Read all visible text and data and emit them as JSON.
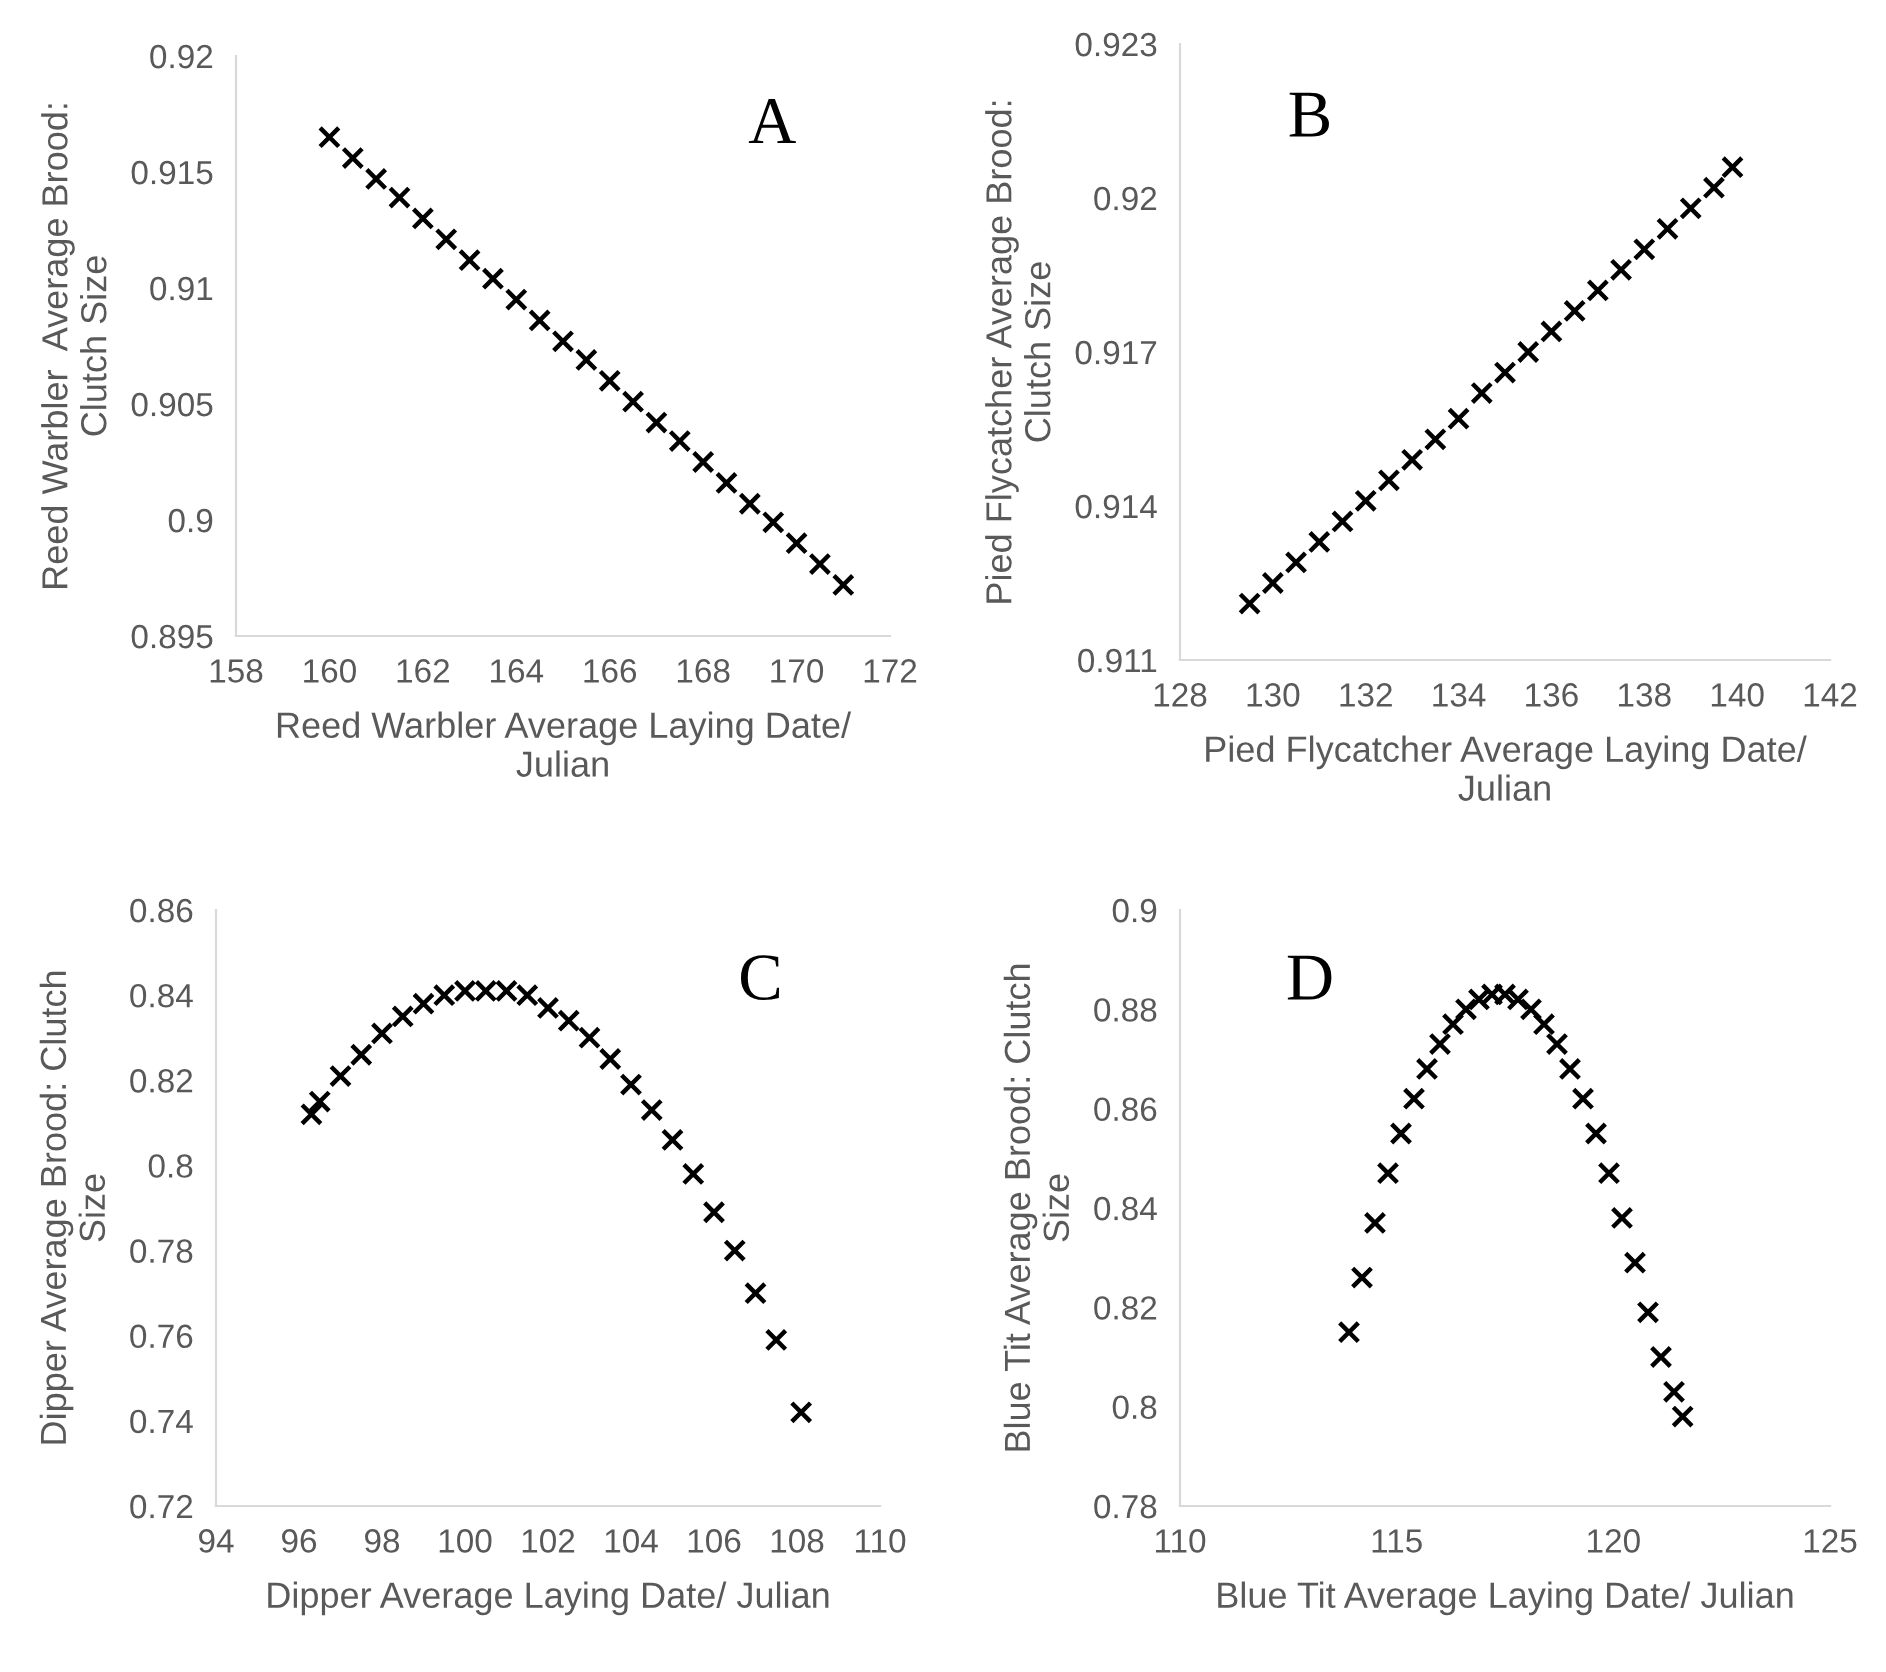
{
  "chart_data": [
    {
      "type": "scatter",
      "annotations": [
        "A"
      ],
      "xlabel": "Reed Warbler Average Laying Date/\nJulian",
      "ylabel": "Reed Warbler  Average Brood:\nClutch Size",
      "marker": "cross",
      "grid": false,
      "xlim": [
        158,
        172
      ],
      "xticks": [
        158,
        160,
        162,
        164,
        166,
        168,
        170,
        172
      ],
      "ylim": [
        0.895,
        0.92
      ],
      "yticks": [
        0.895,
        0.9,
        0.905,
        0.91,
        0.915,
        0.92
      ],
      "x": [
        160,
        160.5,
        161,
        161.5,
        162,
        162.5,
        163,
        163.5,
        164,
        164.5,
        165,
        165.5,
        166,
        166.5,
        167,
        167.5,
        168,
        168.5,
        169,
        169.5,
        170,
        170.5,
        171
      ],
      "series": [
        {
          "color": "#000000",
          "values": [
            0.9165,
            0.9156,
            0.9147,
            0.9139,
            0.913,
            0.9121,
            0.9112,
            0.9104,
            0.9095,
            0.9086,
            0.9077,
            0.9069,
            0.906,
            0.9051,
            0.9042,
            0.9034,
            0.9025,
            0.9016,
            0.9007,
            0.8999,
            0.899,
            0.8981,
            0.8972
          ]
        }
      ]
    },
    {
      "type": "scatter",
      "annotations": [
        "B"
      ],
      "xlabel": "Pied Flycatcher Average Laying Date/\nJulian",
      "ylabel": "Pied Flycatcher Average Brood:\nClutch Size",
      "marker": "cross",
      "grid": false,
      "xlim": [
        128,
        142
      ],
      "xticks": [
        128,
        130,
        132,
        134,
        136,
        138,
        140,
        142
      ],
      "ylim": [
        0.911,
        0.923
      ],
      "yticks": [
        0.911,
        0.914,
        0.917,
        0.92,
        0.923
      ],
      "x": [
        129.5,
        130,
        130.5,
        131,
        131.5,
        132,
        132.5,
        133,
        133.5,
        134,
        134.5,
        135,
        135.5,
        136,
        136.5,
        137,
        137.5,
        138,
        138.5,
        139,
        139.5,
        139.9
      ],
      "series": [
        {
          "color": "#000000",
          "values": [
            0.9121,
            0.9125,
            0.9129,
            0.9133,
            0.9137,
            0.9141,
            0.9145,
            0.9149,
            0.9153,
            0.9157,
            0.9162,
            0.9166,
            0.917,
            0.9174,
            0.9178,
            0.9182,
            0.9186,
            0.919,
            0.9194,
            0.9198,
            0.9202,
            0.9206
          ]
        }
      ]
    },
    {
      "type": "scatter",
      "annotations": [
        "C"
      ],
      "xlabel": "Dipper Average Laying Date/ Julian",
      "ylabel": "Dipper Average Brood: Clutch\nSize",
      "marker": "cross",
      "grid": false,
      "xlim": [
        94,
        110
      ],
      "xticks": [
        94,
        96,
        98,
        100,
        102,
        104,
        106,
        108,
        110
      ],
      "ylim": [
        0.72,
        0.86
      ],
      "yticks": [
        0.72,
        0.74,
        0.76,
        0.78,
        0.8,
        0.82,
        0.84,
        0.86
      ],
      "x": [
        96.3,
        96.5,
        97,
        97.5,
        98,
        98.5,
        99,
        99.5,
        100,
        100.5,
        101,
        101.5,
        102,
        102.5,
        103,
        103.5,
        104,
        104.5,
        105,
        105.5,
        106,
        106.5,
        107,
        107.5,
        108.1
      ],
      "series": [
        {
          "color": "#000000",
          "values": [
            0.812,
            0.815,
            0.821,
            0.826,
            0.831,
            0.835,
            0.838,
            0.84,
            0.841,
            0.841,
            0.841,
            0.84,
            0.837,
            0.834,
            0.83,
            0.825,
            0.819,
            0.813,
            0.806,
            0.798,
            0.789,
            0.78,
            0.77,
            0.759,
            0.742
          ]
        }
      ]
    },
    {
      "type": "scatter",
      "annotations": [
        "D"
      ],
      "xlabel": "Blue Tit Average Laying Date/ Julian",
      "ylabel": "Blue Tit Average Brood: Clutch\nSize",
      "marker": "cross",
      "grid": false,
      "xlim": [
        110,
        125
      ],
      "xticks": [
        110,
        115,
        120,
        125
      ],
      "ylim": [
        0.78,
        0.9
      ],
      "yticks": [
        0.78,
        0.8,
        0.82,
        0.84,
        0.86,
        0.88,
        0.9
      ],
      "x": [
        113.9,
        114.2,
        114.5,
        114.8,
        115.1,
        115.4,
        115.7,
        116,
        116.3,
        116.6,
        116.9,
        117.2,
        117.5,
        117.8,
        118.1,
        118.4,
        118.7,
        119,
        119.3,
        119.6,
        119.9,
        120.2,
        120.5,
        120.8,
        121.1,
        121.4,
        121.6
      ],
      "series": [
        {
          "color": "#000000",
          "values": [
            0.815,
            0.826,
            0.837,
            0.847,
            0.855,
            0.862,
            0.868,
            0.873,
            0.877,
            0.88,
            0.882,
            0.883,
            0.883,
            0.882,
            0.88,
            0.877,
            0.873,
            0.868,
            0.862,
            0.855,
            0.847,
            0.838,
            0.829,
            0.819,
            0.81,
            0.803,
            0.798
          ]
        }
      ]
    }
  ]
}
